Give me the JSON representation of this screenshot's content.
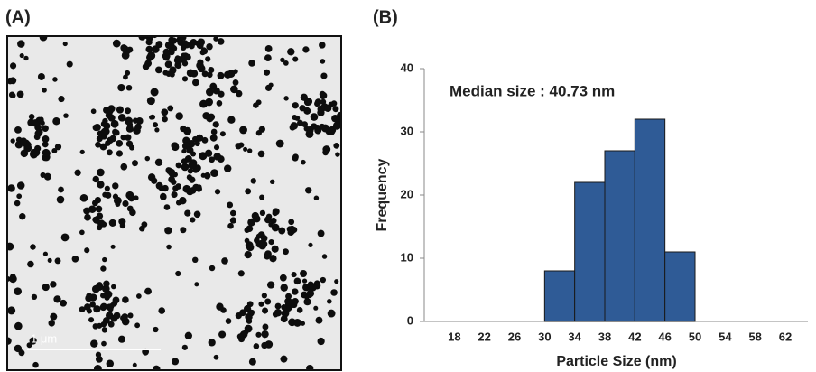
{
  "panel_labels": [
    "(A)",
    "(B)"
  ],
  "image": {
    "scale_bar_label": "1 μm"
  },
  "chart_data": {
    "type": "histogram",
    "annotation": "Median size : 40.73 nm",
    "x_label": "Particle Size (nm)",
    "y_label": "Frequency",
    "bins": [
      30,
      34,
      38,
      42,
      46,
      50
    ],
    "counts": [
      8,
      22,
      27,
      32,
      11
    ],
    "color": "#2f5b96",
    "xlim": [
      14,
      65
    ],
    "xticks": [
      18,
      22,
      26,
      30,
      34,
      38,
      42,
      46,
      50,
      54,
      58,
      62
    ],
    "ylim": [
      0,
      40
    ],
    "yticks": [
      0,
      10,
      20,
      30,
      40
    ],
    "grid": false
  }
}
